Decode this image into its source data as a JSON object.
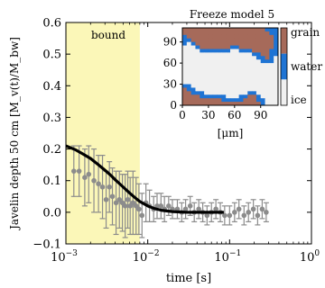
{
  "chart_data": [
    {
      "type": "scatter",
      "xscale": "log",
      "xlim": [
        0.001,
        1
      ],
      "ylim": [
        -0.1,
        0.6
      ],
      "xlabel": "time [s]",
      "ylabel": "Javelin depth 50 cm [M_v(t)/M_bw]",
      "x_ticks": [
        {
          "value": 0.001,
          "base": "10",
          "exp": "−3"
        },
        {
          "value": 0.01,
          "base": "10",
          "exp": "−2"
        },
        {
          "value": 0.1,
          "base": "10",
          "exp": "−1"
        },
        {
          "value": 1,
          "base": "10",
          "exp": "0"
        }
      ],
      "y_ticks": [
        {
          "value": -0.1,
          "label": "−0.1"
        },
        {
          "value": 0.0,
          "label": "0.0"
        },
        {
          "value": 0.1,
          "label": "0.1"
        },
        {
          "value": 0.2,
          "label": "0.2"
        },
        {
          "value": 0.3,
          "label": "0.3"
        },
        {
          "value": 0.4,
          "label": "0.4"
        },
        {
          "value": 0.5,
          "label": "0.5"
        },
        {
          "value": 0.6,
          "label": "0.6"
        }
      ],
      "shaded_region": {
        "label": "bound",
        "x": [
          0.001,
          0.008
        ],
        "color": "#fbf7b8"
      },
      "points": {
        "color": "#8c8c8c",
        "x": [
          0.00125,
          0.00145,
          0.0017,
          0.0019,
          0.0022,
          0.0025,
          0.0028,
          0.0031,
          0.0034,
          0.0037,
          0.0041,
          0.0045,
          0.0049,
          0.0053,
          0.0057,
          0.0061,
          0.0066,
          0.0072,
          0.0078,
          0.0085,
          0.0095,
          0.0105,
          0.0118,
          0.013,
          0.0145,
          0.016,
          0.018,
          0.02,
          0.023,
          0.026,
          0.029,
          0.033,
          0.037,
          0.042,
          0.047,
          0.053,
          0.06,
          0.068,
          0.077,
          0.087,
          0.1,
          0.115,
          0.13,
          0.15,
          0.17,
          0.195,
          0.22,
          0.25,
          0.28
        ],
        "y": [
          0.13,
          0.13,
          0.11,
          0.12,
          0.1,
          0.09,
          0.08,
          0.04,
          0.08,
          0.05,
          0.03,
          0.04,
          0.03,
          0.02,
          0.04,
          0.02,
          0.03,
          0.02,
          0.01,
          -0.01,
          0.03,
          0.02,
          0.01,
          0.02,
          0.02,
          0.01,
          0.02,
          0.01,
          0.01,
          0.0,
          0.01,
          0.02,
          0.0,
          0.01,
          0.0,
          -0.01,
          0.0,
          0.01,
          0.0,
          -0.01,
          -0.01,
          0.0,
          0.01,
          -0.01,
          0.0,
          0.01,
          -0.01,
          0.01,
          0.0
        ],
        "err": [
          0.08,
          0.08,
          0.09,
          0.09,
          0.1,
          0.09,
          0.1,
          0.09,
          0.08,
          0.09,
          0.1,
          0.09,
          0.09,
          0.1,
          0.09,
          0.09,
          0.1,
          0.09,
          0.08,
          0.07,
          0.06,
          0.05,
          0.04,
          0.04,
          0.04,
          0.04,
          0.03,
          0.03,
          0.03,
          0.03,
          0.03,
          0.03,
          0.03,
          0.03,
          0.03,
          0.03,
          0.03,
          0.03,
          0.03,
          0.03,
          0.03,
          0.03,
          0.03,
          0.03,
          0.03,
          0.03,
          0.03,
          0.03,
          0.03
        ]
      },
      "fit_line": {
        "color": "#000000",
        "x": [
          0.001,
          0.0013,
          0.0016,
          0.002,
          0.0025,
          0.003,
          0.0035,
          0.004,
          0.005,
          0.006,
          0.007,
          0.008,
          0.01,
          0.012,
          0.015,
          0.02,
          0.03,
          0.05,
          0.085
        ],
        "y": [
          0.21,
          0.198,
          0.185,
          0.17,
          0.15,
          0.133,
          0.118,
          0.103,
          0.08,
          0.061,
          0.046,
          0.034,
          0.02,
          0.012,
          0.006,
          0.002,
          0.0,
          0.0,
          0.0
        ]
      }
    },
    {
      "type": "heatmap",
      "title": "Freeze model 5",
      "xlabel": "[μm]",
      "xlim": [
        0,
        110
      ],
      "ylim": [
        0,
        110
      ],
      "x_ticks": [
        0,
        30,
        60,
        90
      ],
      "y_ticks": [
        0,
        30,
        60,
        90
      ],
      "classes": [
        {
          "name": "grain",
          "color": "#a66a5a"
        },
        {
          "name": "water",
          "color": "#1f74d4"
        },
        {
          "name": "ice",
          "color": "#f0f0f0"
        }
      ],
      "grid_cols": 22,
      "grid_rows": 22,
      "rows": [
        "GGGGGGGGGGGGGGGGGGGWWW",
        "GGGGGGGGGGGGGGGGGGGGWW",
        "WGGGGGGGGGGGGGGGGGGGGW",
        "WWGGGGGGGGGGGGGGGGGGGW",
        "WIWGGGGGGGGGGGGGGGGGGW",
        "IIIWGGGGGGGWWGGGGGGGGW",
        "IIIIWWWWWWWIIWWWGGGGWW",
        "IIIIIIIIIIIIIIIIWWGGWW",
        "IIIIIIIIIIIIIIIIIWWGWI",
        "IIIIIIIIIIIIIIIIIIWWWI",
        "IIIIIIIIIIIIIIIIIIIIII",
        "IIIIIIIIIIIIIIIIIIIIII",
        "IIIIIIIIIIIIIIIIIIIIII",
        "IIIIIIIIIIIIIIIIIIIIII",
        "IIIIIIIIIIIIIIIIIIIIII",
        "IIIIIIIIIIIIIIIIIIIIII",
        "WWIIIIIIIIIIIIIIIIIIII",
        "GWWIIIIIIIIIIIIIIIIIII",
        "GGWWWIIIIIIIIIIWWIIIII",
        "GGGGWWWWWWIIIWWGGWIIII",
        "GGGGGGGGGWWWWWGGGWWIII",
        "GGGGGGGGGGGGGGGGGGWIII"
      ]
    }
  ]
}
